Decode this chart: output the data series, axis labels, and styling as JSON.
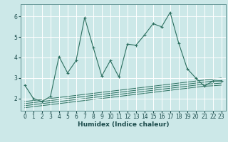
{
  "title": "",
  "xlabel": "Humidex (Indice chaleur)",
  "bg_color": "#cce8e8",
  "grid_color": "#ffffff",
  "line_color": "#2d7060",
  "xlim": [
    -0.5,
    23.5
  ],
  "ylim": [
    1.4,
    6.6
  ],
  "xticks": [
    0,
    1,
    2,
    3,
    4,
    5,
    6,
    7,
    8,
    9,
    10,
    11,
    12,
    13,
    14,
    15,
    16,
    17,
    18,
    19,
    20,
    21,
    22,
    23
  ],
  "yticks": [
    2,
    3,
    4,
    5,
    6
  ],
  "main_x": [
    0,
    1,
    2,
    3,
    4,
    5,
    6,
    7,
    8,
    9,
    10,
    11,
    12,
    13,
    14,
    15,
    16,
    17,
    18,
    19,
    20,
    21,
    22,
    23
  ],
  "main_y": [
    2.65,
    2.0,
    1.85,
    2.1,
    4.05,
    3.25,
    3.85,
    5.95,
    4.5,
    3.1,
    3.85,
    3.05,
    4.65,
    4.6,
    5.1,
    5.65,
    5.5,
    6.2,
    4.7,
    3.45,
    3.0,
    2.6,
    2.85,
    2.85
  ],
  "lines": [
    {
      "x": [
        0,
        1,
        2,
        3,
        4,
        5,
        6,
        7,
        8,
        9,
        10,
        11,
        12,
        13,
        14,
        15,
        16,
        17,
        18,
        19,
        20,
        21,
        22,
        23
      ],
      "y": [
        1.85,
        1.9,
        1.95,
        2.0,
        2.05,
        2.1,
        2.15,
        2.2,
        2.25,
        2.3,
        2.35,
        2.4,
        2.45,
        2.5,
        2.55,
        2.6,
        2.65,
        2.7,
        2.75,
        2.8,
        2.85,
        2.9,
        2.95,
        3.0
      ]
    },
    {
      "x": [
        0,
        1,
        2,
        3,
        4,
        5,
        6,
        7,
        8,
        9,
        10,
        11,
        12,
        13,
        14,
        15,
        16,
        17,
        18,
        19,
        20,
        21,
        22,
        23
      ],
      "y": [
        1.75,
        1.8,
        1.85,
        1.9,
        1.95,
        2.0,
        2.05,
        2.1,
        2.15,
        2.2,
        2.25,
        2.3,
        2.35,
        2.4,
        2.45,
        2.5,
        2.55,
        2.6,
        2.65,
        2.7,
        2.75,
        2.8,
        2.85,
        2.87
      ]
    },
    {
      "x": [
        0,
        1,
        2,
        3,
        4,
        5,
        6,
        7,
        8,
        9,
        10,
        11,
        12,
        13,
        14,
        15,
        16,
        17,
        18,
        19,
        20,
        21,
        22,
        23
      ],
      "y": [
        1.65,
        1.7,
        1.75,
        1.8,
        1.85,
        1.9,
        1.95,
        2.0,
        2.05,
        2.1,
        2.15,
        2.2,
        2.25,
        2.3,
        2.35,
        2.4,
        2.45,
        2.5,
        2.55,
        2.6,
        2.65,
        2.7,
        2.72,
        2.75
      ]
    },
    {
      "x": [
        0,
        1,
        2,
        3,
        4,
        5,
        6,
        7,
        8,
        9,
        10,
        11,
        12,
        13,
        14,
        15,
        16,
        17,
        18,
        19,
        20,
        21,
        22,
        23
      ],
      "y": [
        1.55,
        1.6,
        1.65,
        1.7,
        1.75,
        1.8,
        1.85,
        1.9,
        1.95,
        2.0,
        2.05,
        2.1,
        2.15,
        2.2,
        2.25,
        2.3,
        2.35,
        2.4,
        2.45,
        2.5,
        2.55,
        2.6,
        2.62,
        2.65
      ]
    }
  ],
  "tick_fontsize": 5.5,
  "xlabel_fontsize": 6.5,
  "tick_color": "#1a4a4a",
  "spine_color": "#4a8080"
}
